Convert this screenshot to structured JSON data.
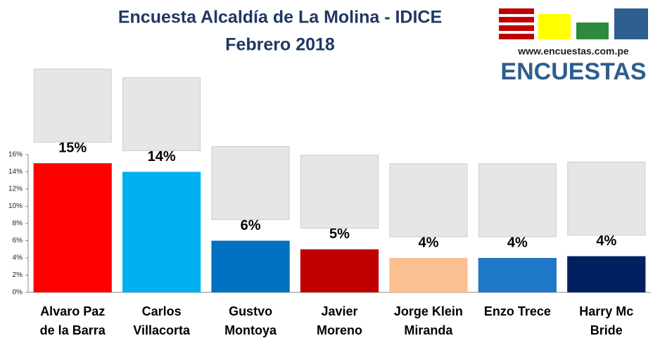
{
  "chart_data": {
    "type": "bar",
    "title": "Encuesta Alcaldía de La Molina - IDICE",
    "subtitle": "Febrero 2018",
    "categories": [
      [
        "Alvaro Paz",
        "de la Barra"
      ],
      [
        "Carlos",
        "Villacorta"
      ],
      [
        "Gustvo",
        "Montoya"
      ],
      [
        "Javier",
        "Moreno"
      ],
      [
        "Jorge Klein",
        "Miranda"
      ],
      [
        "Enzo Trece"
      ],
      [
        "Harry Mc",
        "Bride"
      ]
    ],
    "values": [
      15,
      14,
      6,
      5,
      4,
      4,
      4.2
    ],
    "value_labels": [
      "15%",
      "14%",
      "6%",
      "5%",
      "4%",
      "4%",
      "4%"
    ],
    "colors": [
      "#ff0000",
      "#00b0f0",
      "#0070c0",
      "#c00000",
      "#fac090",
      "#1f78c8",
      "#002060"
    ],
    "ylim": [
      0,
      16
    ],
    "yticks": [
      {
        "value": 0,
        "label": "0%"
      },
      {
        "value": 2,
        "label": "2%"
      },
      {
        "value": 4,
        "label": "4%"
      },
      {
        "value": 6,
        "label": "6%"
      },
      {
        "value": 8,
        "label": "8%"
      },
      {
        "value": 10,
        "label": "10%"
      },
      {
        "value": 12,
        "label": "12%"
      },
      {
        "value": 14,
        "label": "14%"
      },
      {
        "value": 16,
        "label": "16%"
      }
    ],
    "grid": false
  },
  "logo": {
    "url": "www.encuestas.com.pe",
    "name": "ENCUESTAS"
  }
}
